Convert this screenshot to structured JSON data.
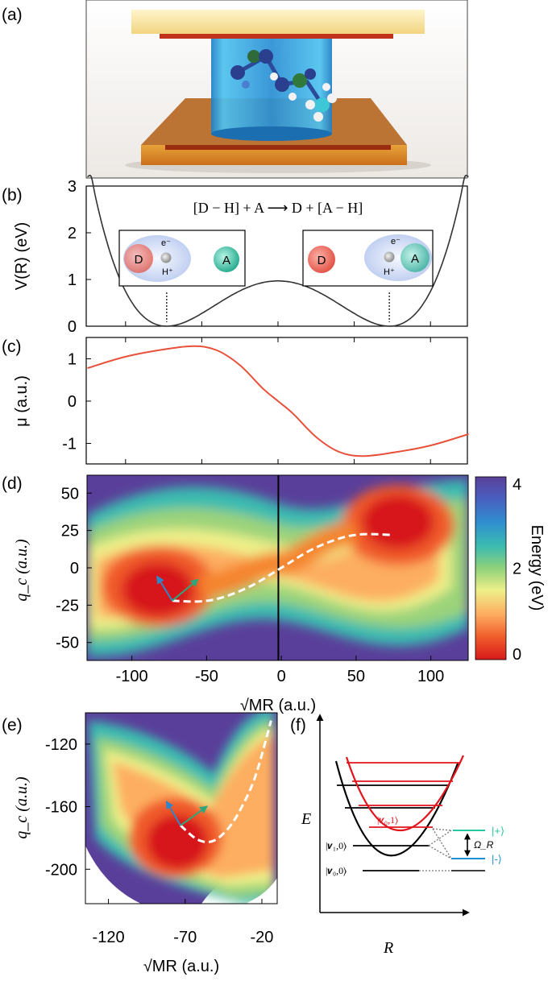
{
  "panels": {
    "a": {
      "label": "(a)"
    },
    "b": {
      "label": "(b)"
    },
    "c": {
      "label": "(c)"
    },
    "d": {
      "label": "(d)"
    },
    "e": {
      "label": "(e)"
    },
    "f": {
      "label": "(f)"
    }
  },
  "chart_data": [
    {
      "id": "b",
      "type": "line",
      "title": "[D − H] + A ⟶ D + [A − H]",
      "ylabel": "V(R) (eV)",
      "ylim": [
        0,
        3
      ],
      "yticks": [
        0,
        1,
        2,
        3
      ],
      "x": [
        -125,
        -100,
        -75,
        -50,
        -25,
        0,
        25,
        50,
        75,
        100,
        125
      ],
      "values": [
        2.9,
        0.82,
        0.0,
        0.27,
        0.75,
        0.97,
        0.75,
        0.27,
        0.0,
        0.82,
        2.9
      ],
      "minima_x": [
        -73,
        73
      ],
      "line_color": "#333333",
      "insets": {
        "left": {
          "donor": "D",
          "acceptor": "A",
          "electron": "e⁻",
          "proton": "H⁺"
        },
        "right": {
          "donor": "D",
          "acceptor": "A",
          "electron": "e⁻",
          "proton": "H⁺"
        }
      }
    },
    {
      "id": "c",
      "type": "line",
      "ylabel": "μ (a.u.)",
      "ylim": [
        -1.5,
        1.5
      ],
      "yticks": [
        -1,
        0,
        1
      ],
      "x": [
        -125,
        -100,
        -75,
        -55,
        -40,
        -25,
        -10,
        0,
        10,
        25,
        40,
        55,
        75,
        100,
        125
      ],
      "values": [
        0.78,
        1.05,
        1.22,
        1.3,
        1.2,
        0.85,
        0.3,
        0.0,
        -0.3,
        -0.85,
        -1.2,
        -1.3,
        -1.22,
        -1.05,
        -0.78
      ],
      "line_color": "#e8503a"
    },
    {
      "id": "d",
      "type": "heatmap",
      "xlabel": "√MR (a.u.)",
      "ylabel": "q_c (a.u.)",
      "xlim": [
        -130,
        125
      ],
      "ylim": [
        -62,
        62
      ],
      "xticks": [
        -100,
        -50,
        0,
        50,
        100
      ],
      "yticks": [
        50,
        25,
        0,
        -25,
        -50
      ],
      "colorbar": {
        "label": "Energy (eV)",
        "min": 0,
        "max": 4,
        "ticks": [
          4,
          2,
          0
        ]
      },
      "minima": [
        {
          "x": -73,
          "y": -22
        },
        {
          "x": 73,
          "y": 22
        }
      ],
      "vertical_line_x": -2,
      "path": {
        "x": [
          -73,
          -55,
          -40,
          -20,
          0,
          20,
          40,
          55,
          73
        ],
        "y": [
          -22,
          -22.5,
          -20,
          -12,
          0,
          12,
          20,
          22.5,
          22
        ]
      },
      "arrow_origin": {
        "x": -73,
        "y": -22
      },
      "arrows": [
        {
          "color": "#2f86c9",
          "dx": -10,
          "dy": 16
        },
        {
          "color": "#2fa67a",
          "dx": 17,
          "dy": 14
        }
      ]
    },
    {
      "id": "e",
      "type": "heatmap",
      "xlabel": "√MR (a.u.)",
      "ylabel": "q_c (a.u.)",
      "xlim": [
        -135,
        -10
      ],
      "ylim": [
        -222,
        -100
      ],
      "xticks": [
        -120,
        -70,
        -20
      ],
      "yticks": [
        -120,
        -160,
        -200
      ],
      "path": {
        "x": [
          -73,
          -62,
          -52,
          -42,
          -33,
          -24,
          -14
        ],
        "y": [
          -172,
          -181,
          -182,
          -174,
          -160,
          -140,
          -105
        ]
      },
      "arrow_origin": {
        "x": -73,
        "y": -172
      },
      "arrows": [
        {
          "color": "#2f86c9",
          "dx": -9,
          "dy": 15
        },
        {
          "color": "#2fa67a",
          "dx": 17,
          "dy": 12
        }
      ]
    },
    {
      "id": "f",
      "type": "diagram",
      "xlabel": "R",
      "ylabel": "E",
      "levels": {
        "v0_0": "|𝒗₀,0⟩",
        "v1_0": "|𝒗₁,0⟩",
        "v0_1": "|𝒗₀,1⟩"
      },
      "polaritons": {
        "upper": "|+⟩",
        "lower": "|-⟩",
        "splitting": "Ω_R"
      },
      "colors": {
        "ground": "#000000",
        "excited": "#e0141b",
        "upper": "#25c8a0",
        "lower": "#1f8fd6"
      }
    }
  ]
}
